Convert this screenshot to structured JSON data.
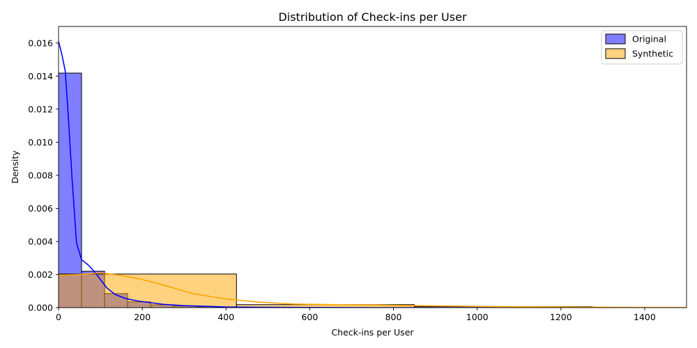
{
  "chart_data": {
    "type": "histogram",
    "title": "Distribution of Check-ins per User",
    "xlabel": "Check-ins per User",
    "ylabel": "Density",
    "xlim": [
      0,
      1500
    ],
    "ylim": [
      0,
      0.017
    ],
    "xticks": [
      0,
      200,
      400,
      600,
      800,
      1000,
      1200,
      1400
    ],
    "yticks": [
      0.0,
      0.002,
      0.004,
      0.006,
      0.008,
      0.01,
      0.012,
      0.014,
      0.016
    ],
    "grid": false,
    "legend_position": "top-right",
    "series": [
      {
        "name": "Original",
        "color": "#0000ff",
        "bins": [
          {
            "x0": 0,
            "x1": 55,
            "density": 0.01418
          },
          {
            "x0": 55,
            "x1": 110,
            "density": 0.0022
          },
          {
            "x0": 110,
            "x1": 165,
            "density": 0.00085
          },
          {
            "x0": 165,
            "x1": 220,
            "density": 0.00035
          },
          {
            "x0": 220,
            "x1": 275,
            "density": 0.00017
          },
          {
            "x0": 275,
            "x1": 330,
            "density": 0.0001
          },
          {
            "x0": 330,
            "x1": 385,
            "density": 6e-05
          },
          {
            "x0": 385,
            "x1": 440,
            "density": 4e-05
          }
        ],
        "kde": [
          [
            0,
            0.0161
          ],
          [
            8,
            0.0153
          ],
          [
            16,
            0.0143
          ],
          [
            24,
            0.0113
          ],
          [
            32,
            0.0079
          ],
          [
            43,
            0.0039
          ],
          [
            55,
            0.0029
          ],
          [
            70,
            0.0026
          ],
          [
            85,
            0.0022
          ],
          [
            100,
            0.0017
          ],
          [
            115,
            0.0012
          ],
          [
            135,
            0.0008
          ],
          [
            160,
            0.00055
          ],
          [
            190,
            0.0004
          ],
          [
            220,
            0.0003
          ],
          [
            250,
            0.0002
          ],
          [
            300,
            0.00012
          ],
          [
            350,
            8e-05
          ],
          [
            400,
            4e-05
          ],
          [
            500,
            2e-05
          ],
          [
            600,
            1e-05
          ],
          [
            800,
            0.0
          ],
          [
            1500,
            0.0
          ]
        ]
      },
      {
        "name": "Synthetic",
        "color": "#ffa500",
        "bins": [
          {
            "x0": 0,
            "x1": 425,
            "density": 0.00203
          },
          {
            "x0": 425,
            "x1": 850,
            "density": 0.00018
          },
          {
            "x0": 850,
            "x1": 1275,
            "density": 6e-05
          },
          {
            "x0": 1275,
            "x1": 1700,
            "density": 2e-05
          }
        ],
        "kde": [
          [
            0,
            0.00195
          ],
          [
            50,
            0.002
          ],
          [
            100,
            0.0021
          ],
          [
            150,
            0.00195
          ],
          [
            200,
            0.0017
          ],
          [
            250,
            0.00137
          ],
          [
            320,
            0.00085
          ],
          [
            400,
            0.00052
          ],
          [
            480,
            0.00033
          ],
          [
            560,
            0.00022
          ],
          [
            650,
            0.00018
          ],
          [
            750,
            0.00016
          ],
          [
            850,
            0.00012
          ],
          [
            950,
            9e-05
          ],
          [
            1050,
            6e-05
          ],
          [
            1200,
            4e-05
          ],
          [
            1350,
            2e-05
          ],
          [
            1500,
            1e-05
          ]
        ]
      }
    ]
  }
}
